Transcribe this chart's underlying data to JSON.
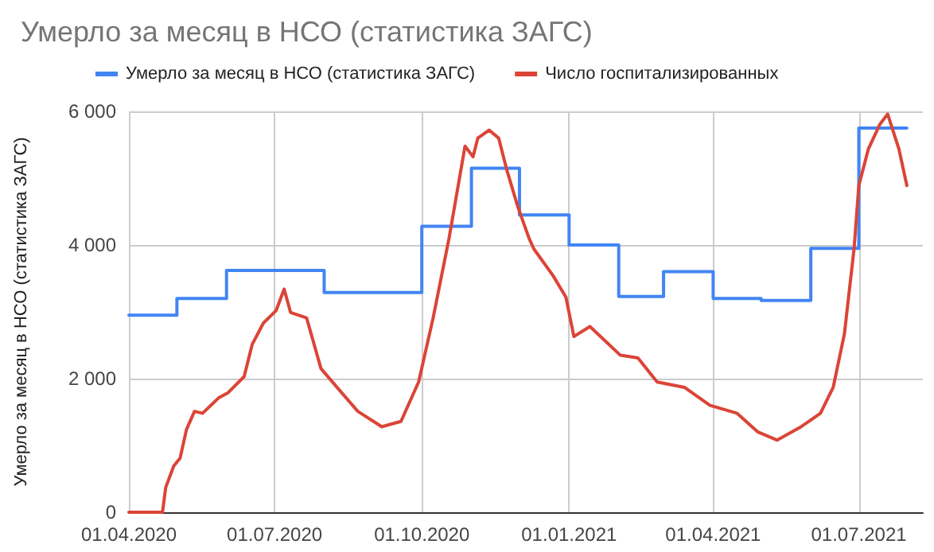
{
  "chart_data": {
    "type": "line",
    "title": "Умерло за месяц в НСО (статистика ЗАГС)",
    "ylabel": "Умерло за месяц в НСО (статистика ЗАГС)",
    "legend": "top",
    "grid": true,
    "marker": "none",
    "line_style": "solid",
    "xlim": [
      "2020-04-01",
      "2021-08-10"
    ],
    "xticks": [
      {
        "value": "2020-04-01",
        "label": "01.04.2020"
      },
      {
        "value": "2020-07-01",
        "label": "01.07.2020"
      },
      {
        "value": "2020-10-01",
        "label": "01.10.2020"
      },
      {
        "value": "2021-01-01",
        "label": "01.01.2021"
      },
      {
        "value": "2021-04-01",
        "label": "01.04.2021"
      },
      {
        "value": "2021-07-01",
        "label": "01.07.2021"
      }
    ],
    "ylim": [
      0,
      6000
    ],
    "yticks": [
      0,
      {
        "value": 2000,
        "label": "2 000"
      },
      {
        "value": 4000,
        "label": "4 000"
      },
      {
        "value": 6000,
        "label": "6 000"
      }
    ],
    "series": [
      {
        "name": "Умерло за месяц в НСО (статистика ЗАГС)",
        "type": "step",
        "color": "#4285f4",
        "x": [
          "2020-04-01",
          "2020-05-01",
          "2020-06-01",
          "2020-07-01",
          "2020-08-01",
          "2020-09-01",
          "2020-10-01",
          "2020-11-01",
          "2020-12-01",
          "2021-01-01",
          "2021-02-01",
          "2021-03-01",
          "2021-04-01",
          "2021-05-01",
          "2021-06-01",
          "2021-07-01",
          "2021-07-31"
        ],
        "values": [
          2950,
          3200,
          3620,
          3620,
          3290,
          3290,
          4280,
          5150,
          4450,
          4000,
          3230,
          3600,
          3200,
          3170,
          3950,
          5750,
          5750
        ]
      },
      {
        "name": "Число госпитализированных",
        "color": "#db4437",
        "x": [
          "2020-04-01",
          "2020-04-22",
          "2020-04-24",
          "2020-04-29",
          "2020-05-03",
          "2020-05-07",
          "2020-05-12",
          "2020-05-17",
          "2020-05-27",
          "2020-06-02",
          "2020-06-12",
          "2020-06-17",
          "2020-06-24",
          "2020-07-02",
          "2020-07-07",
          "2020-07-11",
          "2020-07-21",
          "2020-07-30",
          "2020-08-09",
          "2020-08-22",
          "2020-09-06",
          "2020-09-18",
          "2020-09-29",
          "2020-10-08",
          "2020-10-18",
          "2020-10-28",
          "2020-11-02",
          "2020-11-05",
          "2020-11-12",
          "2020-11-18",
          "2020-11-23",
          "2020-11-30",
          "2020-12-07",
          "2020-12-10",
          "2020-12-22",
          "2020-12-30",
          "2021-01-04",
          "2021-01-14",
          "2021-02-02",
          "2021-02-13",
          "2021-02-25",
          "2021-03-14",
          "2021-03-30",
          "2021-04-16",
          "2021-04-29",
          "2021-05-11",
          "2021-05-26",
          "2021-06-07",
          "2021-06-15",
          "2021-06-22",
          "2021-06-28",
          "2021-07-01",
          "2021-07-07",
          "2021-07-14",
          "2021-07-19",
          "2021-07-26",
          "2021-07-31"
        ],
        "values": [
          0,
          0,
          370,
          690,
          810,
          1240,
          1510,
          1480,
          1710,
          1790,
          2030,
          2510,
          2830,
          3020,
          3340,
          2990,
          2910,
          2150,
          1870,
          1510,
          1280,
          1360,
          1950,
          2900,
          4100,
          5480,
          5320,
          5600,
          5720,
          5600,
          5130,
          4570,
          4100,
          3940,
          3540,
          3220,
          2630,
          2780,
          2350,
          2310,
          1950,
          1870,
          1600,
          1480,
          1200,
          1080,
          1280,
          1480,
          1870,
          2670,
          3940,
          4890,
          5440,
          5800,
          5960,
          5440,
          4890
        ]
      }
    ]
  }
}
